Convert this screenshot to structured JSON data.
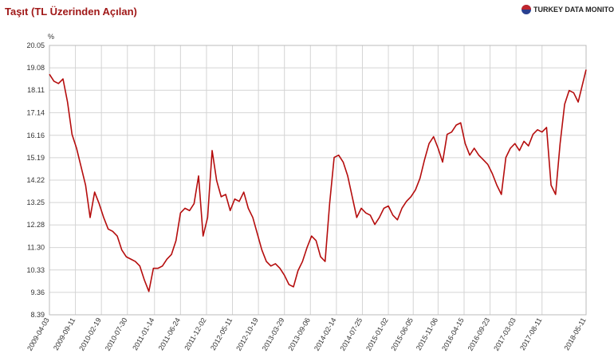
{
  "chart_data": {
    "type": "line",
    "title": "Taşıt (TL Üzerinden Açılan)",
    "logo_text": "TURKEY DATA MONITOR",
    "ylabel": "%",
    "color": "#b50d0d",
    "grid": true,
    "x": [
      "2009-04-03",
      "2009-05-01",
      "2009-05-29",
      "2009-06-26",
      "2009-07-24",
      "2009-08-21",
      "2009-09-18",
      "2009-10-16",
      "2009-11-13",
      "2009-12-11",
      "2010-01-08",
      "2010-02-05",
      "2010-03-05",
      "2010-04-02",
      "2010-04-30",
      "2010-05-28",
      "2010-06-25",
      "2010-07-23",
      "2010-08-20",
      "2010-09-17",
      "2010-10-15",
      "2010-11-12",
      "2010-12-10",
      "2011-01-07",
      "2011-02-04",
      "2011-03-04",
      "2011-04-01",
      "2011-04-29",
      "2011-05-27",
      "2011-06-24",
      "2011-07-22",
      "2011-08-19",
      "2011-09-16",
      "2011-10-14",
      "2011-11-11",
      "2011-12-09",
      "2012-01-06",
      "2012-02-03",
      "2012-03-02",
      "2012-03-30",
      "2012-04-27",
      "2012-05-25",
      "2012-06-22",
      "2012-07-20",
      "2012-08-17",
      "2012-09-14",
      "2012-10-12",
      "2012-11-09",
      "2012-12-07",
      "2013-01-04",
      "2013-02-01",
      "2013-03-01",
      "2013-03-29",
      "2013-04-26",
      "2013-05-24",
      "2013-06-21",
      "2013-07-19",
      "2013-08-16",
      "2013-09-13",
      "2013-10-11",
      "2013-11-08",
      "2013-12-06",
      "2014-01-03",
      "2014-01-31",
      "2014-02-28",
      "2014-03-28",
      "2014-04-25",
      "2014-05-23",
      "2014-06-20",
      "2014-07-18",
      "2014-08-15",
      "2014-09-12",
      "2014-10-10",
      "2014-11-07",
      "2014-12-05",
      "2015-01-02",
      "2015-01-30",
      "2015-02-27",
      "2015-03-27",
      "2015-04-24",
      "2015-05-22",
      "2015-06-19",
      "2015-07-17",
      "2015-08-14",
      "2015-09-11",
      "2015-10-09",
      "2015-11-06",
      "2015-12-04",
      "2016-01-01",
      "2016-01-29",
      "2016-02-26",
      "2016-03-25",
      "2016-04-22",
      "2016-05-20",
      "2016-06-17",
      "2016-07-15",
      "2016-08-12",
      "2016-09-09",
      "2016-10-07",
      "2016-11-04",
      "2016-12-02",
      "2016-12-30",
      "2017-01-27",
      "2017-02-24",
      "2017-03-24",
      "2017-04-21",
      "2017-05-19",
      "2017-06-16",
      "2017-07-14",
      "2017-08-11",
      "2017-09-08",
      "2017-10-06",
      "2017-11-03",
      "2017-12-01",
      "2017-12-29",
      "2018-01-26",
      "2018-02-23",
      "2018-03-23",
      "2018-04-20",
      "2018-05-11"
    ],
    "values": [
      18.8,
      18.5,
      18.4,
      18.6,
      17.6,
      16.2,
      15.6,
      14.8,
      14.0,
      12.6,
      13.7,
      13.2,
      12.6,
      12.1,
      12.0,
      11.8,
      11.2,
      10.9,
      10.8,
      10.7,
      10.5,
      9.9,
      9.4,
      10.4,
      10.4,
      10.5,
      10.8,
      11.0,
      11.6,
      12.8,
      13.0,
      12.9,
      13.2,
      14.4,
      11.8,
      12.6,
      15.5,
      14.2,
      13.5,
      13.6,
      12.9,
      13.4,
      13.3,
      13.7,
      13.0,
      12.6,
      11.9,
      11.2,
      10.7,
      10.5,
      10.6,
      10.4,
      10.1,
      9.7,
      9.6,
      10.3,
      10.7,
      11.3,
      11.8,
      11.6,
      10.9,
      10.7,
      13.2,
      15.2,
      15.3,
      15.0,
      14.4,
      13.5,
      12.6,
      13.0,
      12.8,
      12.7,
      12.3,
      12.6,
      13.0,
      13.1,
      12.7,
      12.5,
      13.0,
      13.3,
      13.5,
      13.8,
      14.3,
      15.1,
      15.8,
      16.1,
      15.6,
      15.0,
      16.2,
      16.3,
      16.6,
      16.7,
      15.8,
      15.3,
      15.6,
      15.3,
      15.1,
      14.9,
      14.5,
      14.0,
      13.6,
      15.2,
      15.6,
      15.8,
      15.5,
      15.9,
      15.7,
      16.2,
      16.4,
      16.3,
      16.5,
      14.0,
      13.6,
      15.8,
      17.5,
      18.1,
      18.0,
      17.6,
      18.4,
      19.0
    ],
    "xlim": [
      "2009-04-03",
      "2018-05-11"
    ],
    "xticks": [
      "2009-04-03",
      "2009-09-11",
      "2010-02-19",
      "2010-07-30",
      "2011-01-14",
      "2011-06-24",
      "2011-12-02",
      "2012-05-11",
      "2012-10-19",
      "2013-03-29",
      "2013-09-06",
      "2014-02-14",
      "2014-07-25",
      "2015-01-02",
      "2015-06-05",
      "2015-11-06",
      "2016-04-15",
      "2016-09-23",
      "2017-03-03",
      "2017-08-11",
      "2018-05-11"
    ],
    "ylim": [
      8.39,
      20.05
    ],
    "yticks": [
      8.39,
      9.36,
      10.33,
      {
        "value": 11.3,
        "label": "11.30"
      },
      12.28,
      13.25,
      14.22,
      15.19,
      16.16,
      17.14,
      18.11,
      19.08,
      20.05
    ]
  }
}
